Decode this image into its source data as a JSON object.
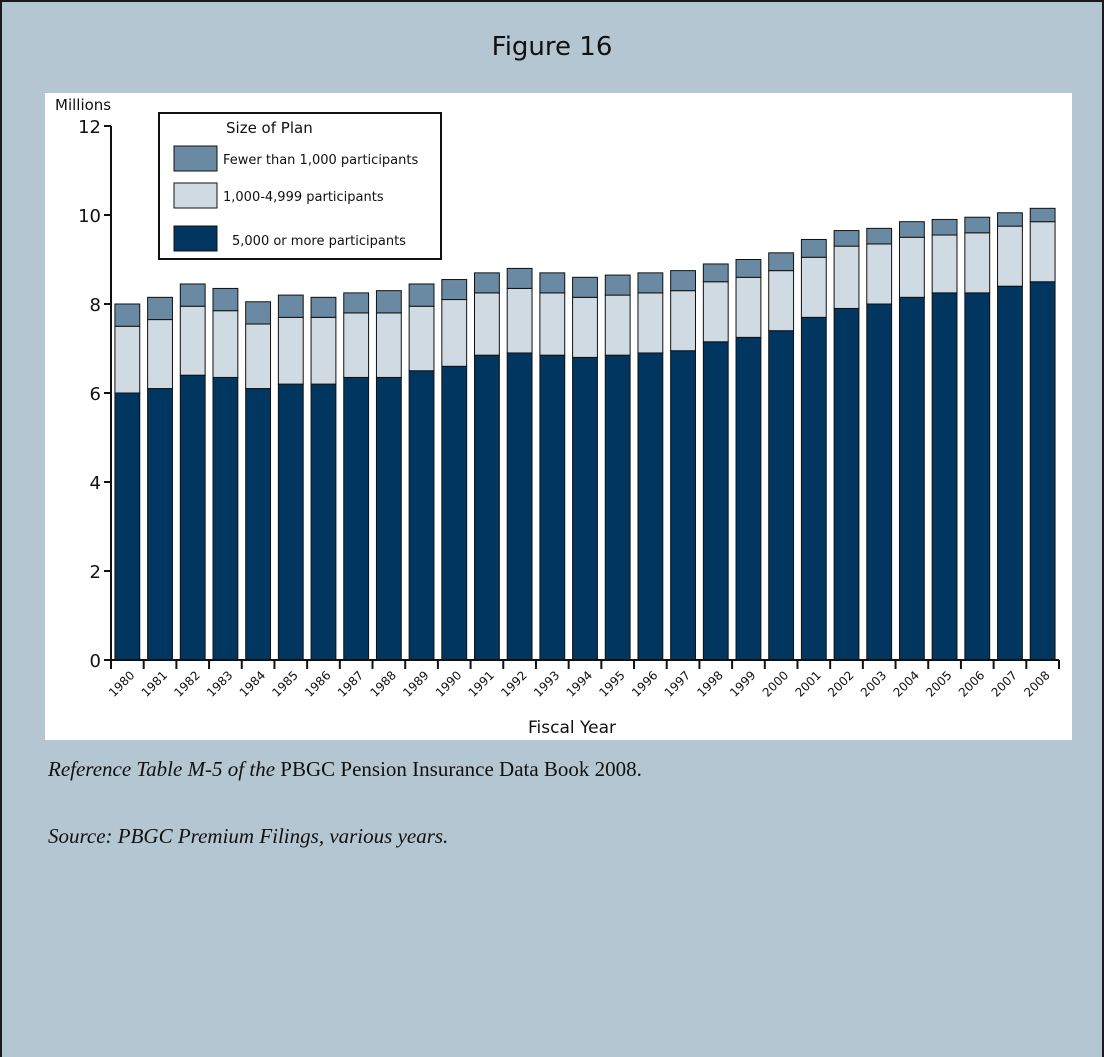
{
  "figure_title": "Figure 16",
  "reference": {
    "italic_part": "Reference Table M-5 of the",
    "regular_part": "PBGC Pension Insurance Data Book 2008."
  },
  "source_note": "Source: PBGC Premium Filings, various years.",
  "colors": {
    "page_background": "#b4c6d1",
    "plot_background": "#ffffff",
    "large": "#003660",
    "medium": "#cfdae2",
    "small": "#6a8aa3"
  },
  "chart_data": {
    "type": "bar",
    "stacked": true,
    "title": "",
    "xlabel": "Fiscal Year",
    "ylabel": "Millions",
    "ylim": [
      0,
      12
    ],
    "yticks": [
      0,
      2,
      4,
      6,
      8,
      10,
      12
    ],
    "grid": false,
    "legend_title": "Size of Plan",
    "legend_position": "top-left",
    "categories": [
      "1980",
      "1981",
      "1982",
      "1983",
      "1984",
      "1985",
      "1986",
      "1987",
      "1988",
      "1989",
      "1990",
      "1991",
      "1992",
      "1993",
      "1994",
      "1995",
      "1996",
      "1997",
      "1998",
      "1999",
      "2000",
      "2001",
      "2002",
      "2003",
      "2004",
      "2005",
      "2006",
      "2007",
      "2008"
    ],
    "series": [
      {
        "name": "5,000 or more participants",
        "values": [
          6.0,
          6.1,
          6.4,
          6.35,
          6.1,
          6.2,
          6.2,
          6.35,
          6.35,
          6.5,
          6.6,
          6.85,
          6.9,
          6.85,
          6.8,
          6.85,
          6.9,
          6.95,
          7.15,
          7.25,
          7.4,
          7.7,
          7.9,
          8.0,
          8.15,
          8.25,
          8.25,
          8.4,
          8.5
        ]
      },
      {
        "name": "1,000-4,999 participants",
        "values": [
          1.5,
          1.55,
          1.55,
          1.5,
          1.45,
          1.5,
          1.5,
          1.45,
          1.45,
          1.45,
          1.5,
          1.4,
          1.45,
          1.4,
          1.35,
          1.35,
          1.35,
          1.35,
          1.35,
          1.35,
          1.35,
          1.35,
          1.4,
          1.35,
          1.35,
          1.3,
          1.35,
          1.35,
          1.35
        ]
      },
      {
        "name": "Fewer than 1,000 participants",
        "values": [
          0.5,
          0.5,
          0.5,
          0.5,
          0.5,
          0.5,
          0.45,
          0.45,
          0.5,
          0.5,
          0.45,
          0.45,
          0.45,
          0.45,
          0.45,
          0.45,
          0.45,
          0.45,
          0.4,
          0.4,
          0.4,
          0.4,
          0.35,
          0.35,
          0.35,
          0.35,
          0.35,
          0.3,
          0.3
        ]
      }
    ]
  }
}
